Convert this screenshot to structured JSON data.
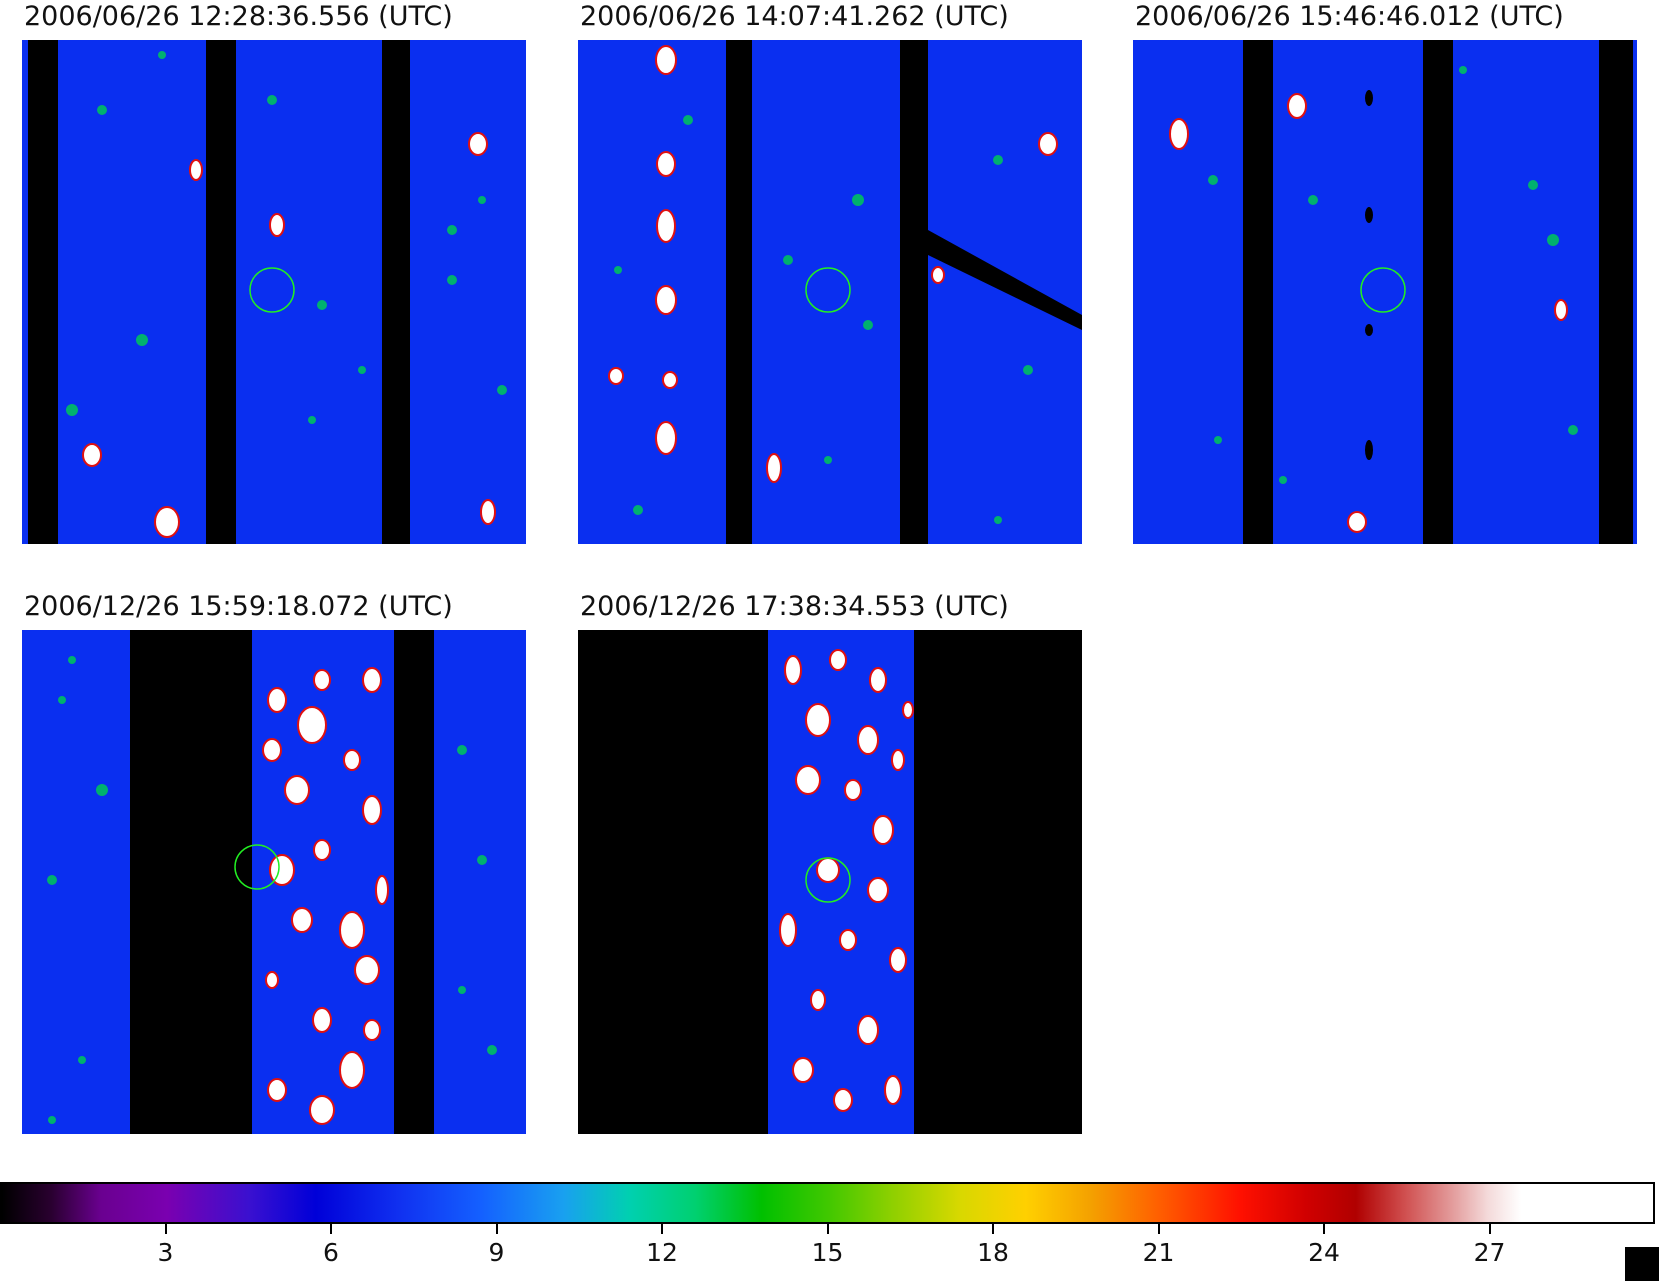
{
  "panels": [
    {
      "timestamp": "2006/06/26 12:28:36.556 (UTC)"
    },
    {
      "timestamp": "2006/06/26 14:07:41.262 (UTC)"
    },
    {
      "timestamp": "2006/06/26 15:46:46.012 (UTC)"
    },
    {
      "timestamp": "2006/12/26 15:59:18.072 (UTC)"
    },
    {
      "timestamp": "2006/12/26 17:38:34.553 (UTC)"
    }
  ],
  "colorbar": {
    "ticks": [
      "3",
      "6",
      "9",
      "12",
      "15",
      "18",
      "21",
      "24",
      "27"
    ],
    "tick_values": [
      3,
      6,
      9,
      12,
      15,
      18,
      21,
      24,
      27
    ],
    "range": [
      0,
      30
    ],
    "colormap": "spectral-like (black-purple-blue-cyan-green-yellow-red-white)"
  },
  "colors": {
    "background_field": "#0a2ff0",
    "gap": "#000000",
    "marker_circle": "#22ee22",
    "saturated": "#ffffff"
  }
}
